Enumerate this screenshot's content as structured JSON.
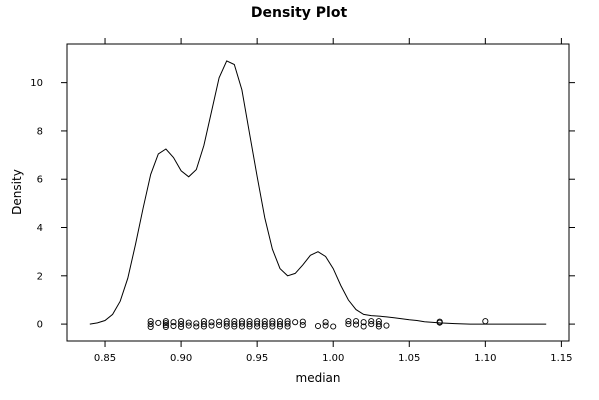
{
  "chart_data": {
    "type": "line",
    "title": "Density Plot",
    "xlabel": "median",
    "ylabel": "Density",
    "xlim": [
      0.825,
      1.155
    ],
    "ylim": [
      -0.7,
      11.6
    ],
    "x_ticks": [
      0.85,
      0.9,
      0.95,
      1.0,
      1.05,
      1.1,
      1.15
    ],
    "x_tick_labels": [
      "0.85",
      "0.90",
      "0.95",
      "1.00",
      "1.05",
      "1.10",
      "1.15"
    ],
    "y_ticks": [
      0,
      2,
      4,
      6,
      8,
      10
    ],
    "y_tick_labels": [
      "0",
      "2",
      "4",
      "6",
      "8",
      "10"
    ],
    "grid": false,
    "series": [
      {
        "kind": "density-curve",
        "color": "#000000",
        "x": [
          0.84,
          0.845,
          0.85,
          0.855,
          0.86,
          0.865,
          0.87,
          0.875,
          0.88,
          0.885,
          0.89,
          0.895,
          0.9,
          0.905,
          0.91,
          0.915,
          0.92,
          0.925,
          0.93,
          0.935,
          0.94,
          0.945,
          0.95,
          0.955,
          0.96,
          0.965,
          0.97,
          0.975,
          0.98,
          0.985,
          0.99,
          0.995,
          1.0,
          1.005,
          1.01,
          1.015,
          1.02,
          1.025,
          1.03,
          1.035,
          1.04,
          1.045,
          1.05,
          1.055,
          1.06,
          1.07,
          1.08,
          1.09,
          1.1,
          1.11,
          1.12,
          1.13,
          1.14
        ],
        "y": [
          0.0,
          0.05,
          0.15,
          0.4,
          0.95,
          1.9,
          3.3,
          4.8,
          6.2,
          7.05,
          7.25,
          6.9,
          6.35,
          6.1,
          6.4,
          7.4,
          8.8,
          10.2,
          10.9,
          10.75,
          9.7,
          7.9,
          6.1,
          4.4,
          3.1,
          2.3,
          2.0,
          2.1,
          2.45,
          2.85,
          3.0,
          2.8,
          2.3,
          1.6,
          1.0,
          0.6,
          0.4,
          0.35,
          0.33,
          0.3,
          0.26,
          0.22,
          0.18,
          0.15,
          0.1,
          0.05,
          0.02,
          0.0,
          0.0,
          0.0,
          0.0,
          0.0,
          0.0
        ]
      },
      {
        "kind": "rug-points",
        "marker": "open-circle",
        "x": [
          0.88,
          0.88,
          0.88,
          0.885,
          0.89,
          0.89,
          0.89,
          0.89,
          0.895,
          0.895,
          0.9,
          0.9,
          0.9,
          0.905,
          0.905,
          0.91,
          0.91,
          0.915,
          0.915,
          0.915,
          0.92,
          0.92,
          0.925,
          0.925,
          0.93,
          0.93,
          0.93,
          0.935,
          0.935,
          0.935,
          0.94,
          0.94,
          0.94,
          0.945,
          0.945,
          0.945,
          0.95,
          0.95,
          0.95,
          0.955,
          0.955,
          0.955,
          0.96,
          0.96,
          0.96,
          0.965,
          0.965,
          0.965,
          0.97,
          0.97,
          0.97,
          0.975,
          0.98,
          0.98,
          0.99,
          0.995,
          0.995,
          1.0,
          1.01,
          1.01,
          1.015,
          1.015,
          1.02,
          1.02,
          1.025,
          1.025,
          1.03,
          1.03,
          1.03,
          1.035,
          1.07,
          1.07,
          1.1
        ],
        "y": [
          0.12,
          0.0,
          -0.12,
          0.05,
          0.12,
          0.04,
          -0.04,
          -0.12,
          0.08,
          -0.08,
          0.12,
          0.0,
          -0.12,
          0.06,
          -0.06,
          0.03,
          -0.1,
          0.12,
          0.0,
          -0.1,
          0.08,
          -0.06,
          0.1,
          -0.04,
          0.12,
          0.02,
          -0.1,
          0.12,
          0.0,
          -0.1,
          0.12,
          0.02,
          -0.1,
          0.12,
          0.0,
          -0.1,
          0.12,
          0.02,
          -0.1,
          0.12,
          0.0,
          -0.1,
          0.12,
          0.02,
          -0.1,
          0.12,
          0.0,
          -0.1,
          0.12,
          0.02,
          -0.1,
          0.08,
          0.1,
          -0.04,
          -0.08,
          0.08,
          -0.06,
          -0.1,
          0.12,
          0.0,
          0.12,
          -0.02,
          0.08,
          -0.1,
          0.12,
          0.0,
          0.12,
          0.0,
          -0.1,
          -0.06,
          0.1,
          0.06,
          0.12
        ]
      }
    ]
  }
}
